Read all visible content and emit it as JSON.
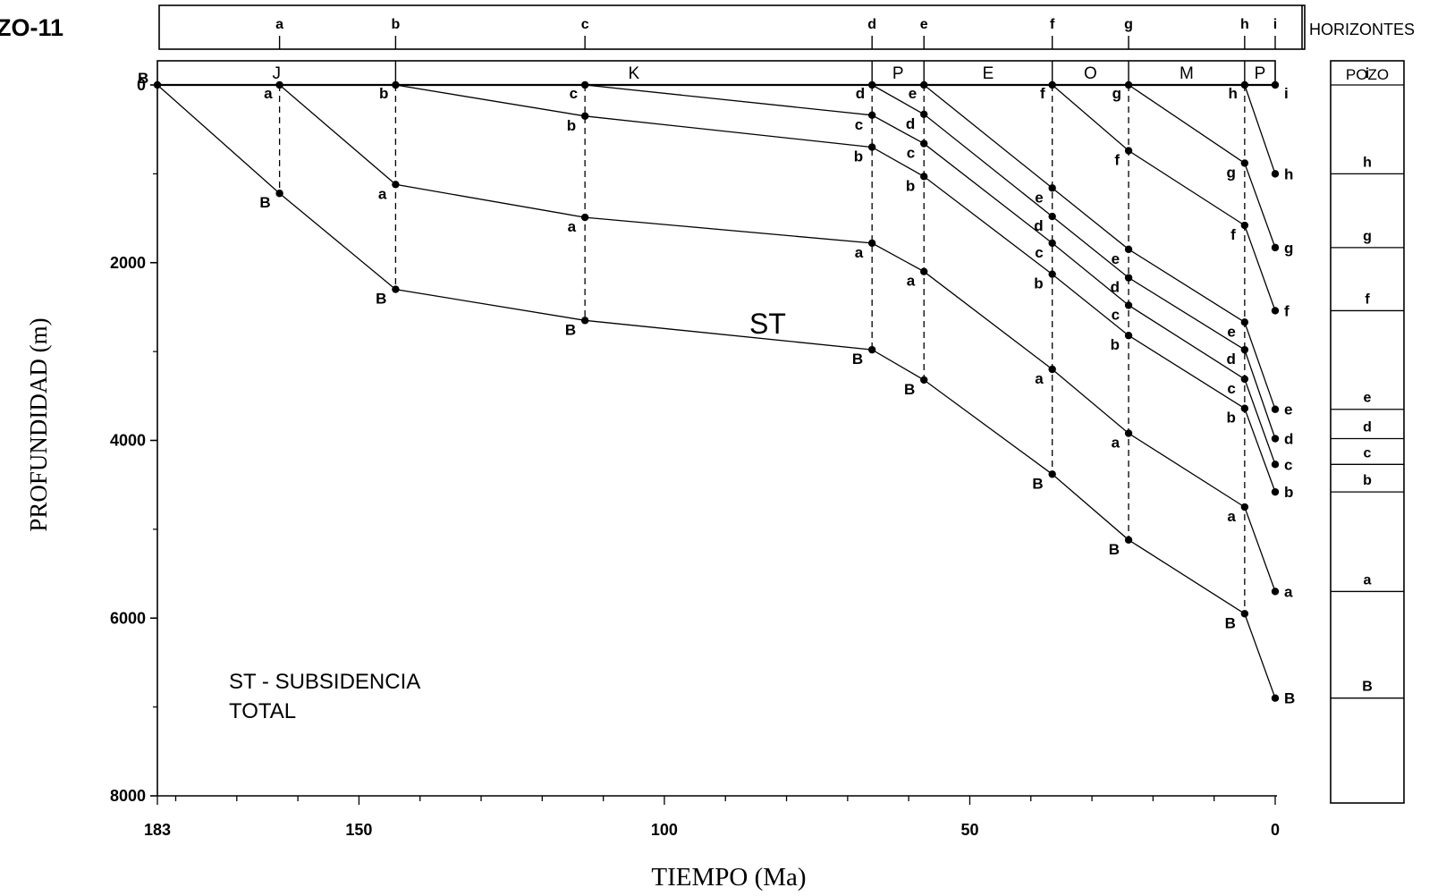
{
  "page_title": "ZO-11",
  "chart_data": {
    "type": "line",
    "title": "ZO-11",
    "xlabel": "TIEMPO (Ma)",
    "ylabel": "PROFUNDIDAD (m)",
    "xlim": [
      183,
      0
    ],
    "ylim": [
      0,
      8000
    ],
    "x_ticks": [
      183,
      150,
      100,
      50,
      0
    ],
    "y_ticks": [
      0,
      2000,
      4000,
      6000,
      8000
    ],
    "grid": false,
    "annotation_st": "ST",
    "legend_lines": [
      "ST - SUBSIDENCIA",
      "TOTAL"
    ],
    "horizons_label": "HORIZONTES",
    "horizon_ages": [
      {
        "name": "a",
        "age": 163
      },
      {
        "name": "b",
        "age": 144
      },
      {
        "name": "c",
        "age": 113
      },
      {
        "name": "d",
        "age": 66
      },
      {
        "name": "e",
        "age": 57.5
      },
      {
        "name": "f",
        "age": 36.5
      },
      {
        "name": "g",
        "age": 24
      },
      {
        "name": "h",
        "age": 5
      },
      {
        "name": "i",
        "age": 0
      }
    ],
    "periods": [
      {
        "name": "J",
        "from": 183,
        "to": 144
      },
      {
        "name": "K",
        "from": 144,
        "to": 66
      },
      {
        "name": "P",
        "from": 66,
        "to": 57.5
      },
      {
        "name": "E",
        "from": 57.5,
        "to": 36.5
      },
      {
        "name": "O",
        "from": 36.5,
        "to": 24
      },
      {
        "name": "M",
        "from": 24,
        "to": 5
      },
      {
        "name": "P",
        "from": 5,
        "to": 0
      }
    ],
    "series": [
      {
        "name": "B",
        "points": [
          [
            183,
            0
          ],
          [
            163,
            1220
          ],
          [
            144,
            2300
          ],
          [
            113,
            2650
          ],
          [
            66,
            2980
          ],
          [
            57.5,
            3320
          ],
          [
            36.5,
            4380
          ],
          [
            24,
            5120
          ],
          [
            5,
            5950
          ],
          [
            0,
            6900
          ]
        ]
      },
      {
        "name": "a",
        "points": [
          [
            163,
            0
          ],
          [
            144,
            1120
          ],
          [
            113,
            1490
          ],
          [
            66,
            1780
          ],
          [
            57.5,
            2100
          ],
          [
            36.5,
            3200
          ],
          [
            24,
            3920
          ],
          [
            5,
            4750
          ],
          [
            0,
            5700
          ]
        ]
      },
      {
        "name": "b",
        "points": [
          [
            144,
            0
          ],
          [
            113,
            350
          ],
          [
            66,
            700
          ],
          [
            57.5,
            1030
          ],
          [
            36.5,
            2130
          ],
          [
            24,
            2820
          ],
          [
            5,
            3640
          ],
          [
            0,
            4580
          ]
        ]
      },
      {
        "name": "c",
        "points": [
          [
            113,
            0
          ],
          [
            66,
            340
          ],
          [
            57.5,
            660
          ],
          [
            36.5,
            1780
          ],
          [
            24,
            2480
          ],
          [
            5,
            3310
          ],
          [
            0,
            4270
          ]
        ]
      },
      {
        "name": "d",
        "points": [
          [
            66,
            0
          ],
          [
            57.5,
            330
          ],
          [
            36.5,
            1480
          ],
          [
            24,
            2170
          ],
          [
            5,
            2980
          ],
          [
            0,
            3980
          ]
        ]
      },
      {
        "name": "e",
        "points": [
          [
            57.5,
            0
          ],
          [
            36.5,
            1160
          ],
          [
            24,
            1850
          ],
          [
            5,
            2670
          ],
          [
            0,
            3650
          ]
        ]
      },
      {
        "name": "f",
        "points": [
          [
            36.5,
            0
          ],
          [
            24,
            740
          ],
          [
            5,
            1580
          ],
          [
            0,
            2540
          ]
        ]
      },
      {
        "name": "g",
        "points": [
          [
            24,
            0
          ],
          [
            5,
            880
          ],
          [
            0,
            1830
          ]
        ]
      },
      {
        "name": "h",
        "points": [
          [
            5,
            0
          ],
          [
            0,
            1000
          ]
        ]
      }
    ],
    "well_column": {
      "title": "POZO",
      "horizons": [
        {
          "name": "i",
          "depth": 0
        },
        {
          "name": "h",
          "depth": 1000
        },
        {
          "name": "g",
          "depth": 1830
        },
        {
          "name": "f",
          "depth": 2540
        },
        {
          "name": "e",
          "depth": 3650
        },
        {
          "name": "d",
          "depth": 3980
        },
        {
          "name": "c",
          "depth": 4270
        },
        {
          "name": "b",
          "depth": 4580
        },
        {
          "name": "a",
          "depth": 5700
        },
        {
          "name": "B",
          "depth": 6900
        }
      ]
    }
  }
}
